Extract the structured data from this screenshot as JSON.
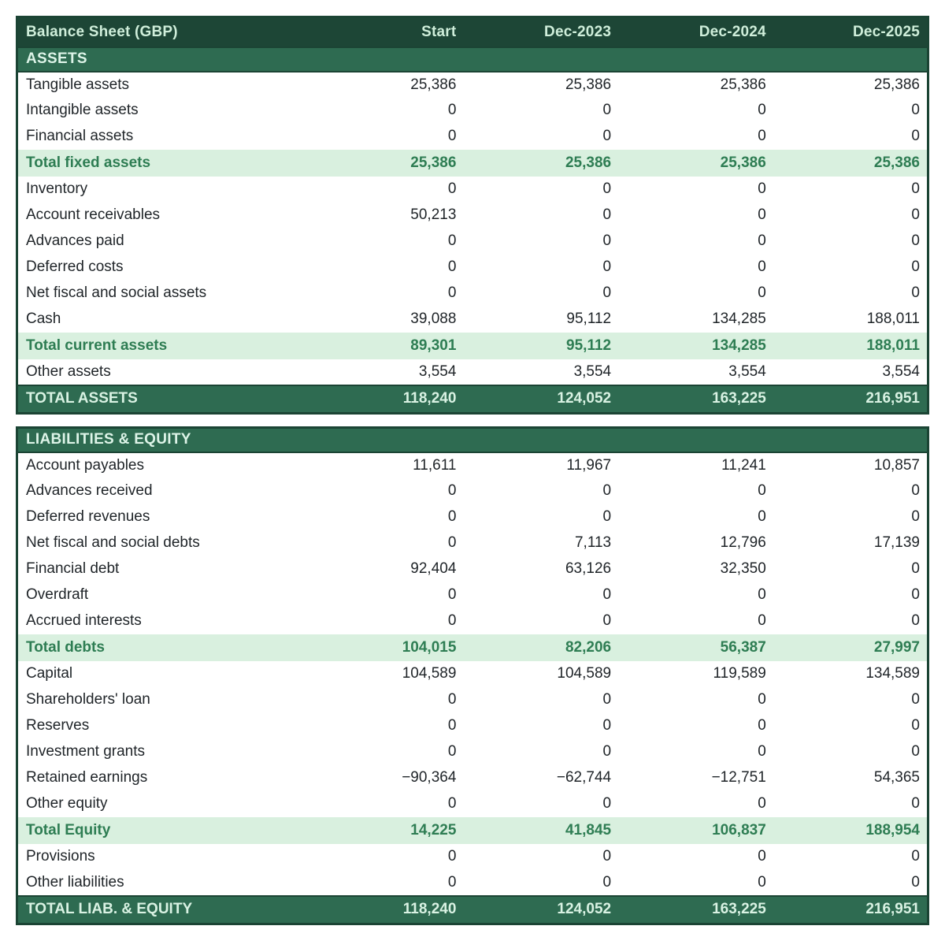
{
  "title": "Balance Sheet (GBP)",
  "colors": {
    "header_bg": "#1d4636",
    "section_bg": "#2e6b51",
    "subtotal_bg": "#d9f0df",
    "subtotal_text": "#2e7d53",
    "grand_bg": "#2e6b51",
    "grand_text": "#d9f2e3",
    "header_text": "#cfeeda",
    "body_text": "#1f2428",
    "border": "#1b4434"
  },
  "table": {
    "columns": [
      "Balance Sheet (GBP)",
      "Start",
      "Dec-2023",
      "Dec-2024",
      "Dec-2025"
    ],
    "sections": [
      {
        "name": "ASSETS",
        "rows": [
          {
            "type": "normal",
            "label": "Tangible assets",
            "values": [
              "25,386",
              "25,386",
              "25,386",
              "25,386"
            ]
          },
          {
            "type": "normal",
            "label": "Intangible assets",
            "values": [
              "0",
              "0",
              "0",
              "0"
            ]
          },
          {
            "type": "normal",
            "label": "Financial assets",
            "values": [
              "0",
              "0",
              "0",
              "0"
            ]
          },
          {
            "type": "subtotal",
            "label": "Total fixed assets",
            "values": [
              "25,386",
              "25,386",
              "25,386",
              "25,386"
            ]
          },
          {
            "type": "normal",
            "label": "Inventory",
            "values": [
              "0",
              "0",
              "0",
              "0"
            ]
          },
          {
            "type": "normal",
            "label": "Account receivables",
            "values": [
              "50,213",
              "0",
              "0",
              "0"
            ]
          },
          {
            "type": "normal",
            "label": "Advances paid",
            "values": [
              "0",
              "0",
              "0",
              "0"
            ]
          },
          {
            "type": "normal",
            "label": "Deferred costs",
            "values": [
              "0",
              "0",
              "0",
              "0"
            ]
          },
          {
            "type": "normal",
            "label": "Net fiscal and social assets",
            "values": [
              "0",
              "0",
              "0",
              "0"
            ]
          },
          {
            "type": "normal",
            "label": "Cash",
            "values": [
              "39,088",
              "95,112",
              "134,285",
              "188,011"
            ]
          },
          {
            "type": "subtotal",
            "label": "Total current assets",
            "values": [
              "89,301",
              "95,112",
              "134,285",
              "188,011"
            ]
          },
          {
            "type": "normal",
            "label": "Other assets",
            "values": [
              "3,554",
              "3,554",
              "3,554",
              "3,554"
            ]
          },
          {
            "type": "grand",
            "label": "TOTAL ASSETS",
            "values": [
              "118,240",
              "124,052",
              "163,225",
              "216,951"
            ]
          }
        ]
      },
      {
        "name": "LIABILITIES & EQUITY",
        "rows": [
          {
            "type": "normal",
            "label": "Account payables",
            "values": [
              "11,611",
              "11,967",
              "11,241",
              "10,857"
            ]
          },
          {
            "type": "normal",
            "label": "Advances received",
            "values": [
              "0",
              "0",
              "0",
              "0"
            ]
          },
          {
            "type": "normal",
            "label": "Deferred revenues",
            "values": [
              "0",
              "0",
              "0",
              "0"
            ]
          },
          {
            "type": "normal",
            "label": "Net fiscal and social debts",
            "values": [
              "0",
              "7,113",
              "12,796",
              "17,139"
            ]
          },
          {
            "type": "normal",
            "label": "Financial debt",
            "values": [
              "92,404",
              "63,126",
              "32,350",
              "0"
            ]
          },
          {
            "type": "normal",
            "label": "Overdraft",
            "values": [
              "0",
              "0",
              "0",
              "0"
            ]
          },
          {
            "type": "normal",
            "label": "Accrued interests",
            "values": [
              "0",
              "0",
              "0",
              "0"
            ]
          },
          {
            "type": "subtotal",
            "label": "Total debts",
            "values": [
              "104,015",
              "82,206",
              "56,387",
              "27,997"
            ]
          },
          {
            "type": "normal",
            "label": "Capital",
            "values": [
              "104,589",
              "104,589",
              "119,589",
              "134,589"
            ]
          },
          {
            "type": "normal",
            "label": "Shareholders' loan",
            "values": [
              "0",
              "0",
              "0",
              "0"
            ]
          },
          {
            "type": "normal",
            "label": "Reserves",
            "values": [
              "0",
              "0",
              "0",
              "0"
            ]
          },
          {
            "type": "normal",
            "label": "Investment grants",
            "values": [
              "0",
              "0",
              "0",
              "0"
            ]
          },
          {
            "type": "normal",
            "label": "Retained earnings",
            "values": [
              "−90,364",
              "−62,744",
              "−12,751",
              "54,365"
            ]
          },
          {
            "type": "normal",
            "label": "Other equity",
            "values": [
              "0",
              "0",
              "0",
              "0"
            ]
          },
          {
            "type": "subtotal",
            "label": "Total Equity",
            "values": [
              "14,225",
              "41,845",
              "106,837",
              "188,954"
            ]
          },
          {
            "type": "normal",
            "label": "Provisions",
            "values": [
              "0",
              "0",
              "0",
              "0"
            ]
          },
          {
            "type": "normal",
            "label": "Other liabilities",
            "values": [
              "0",
              "0",
              "0",
              "0"
            ]
          },
          {
            "type": "grand",
            "label": "TOTAL LIAB. & EQUITY",
            "values": [
              "118,240",
              "124,052",
              "163,225",
              "216,951"
            ]
          }
        ]
      }
    ]
  }
}
